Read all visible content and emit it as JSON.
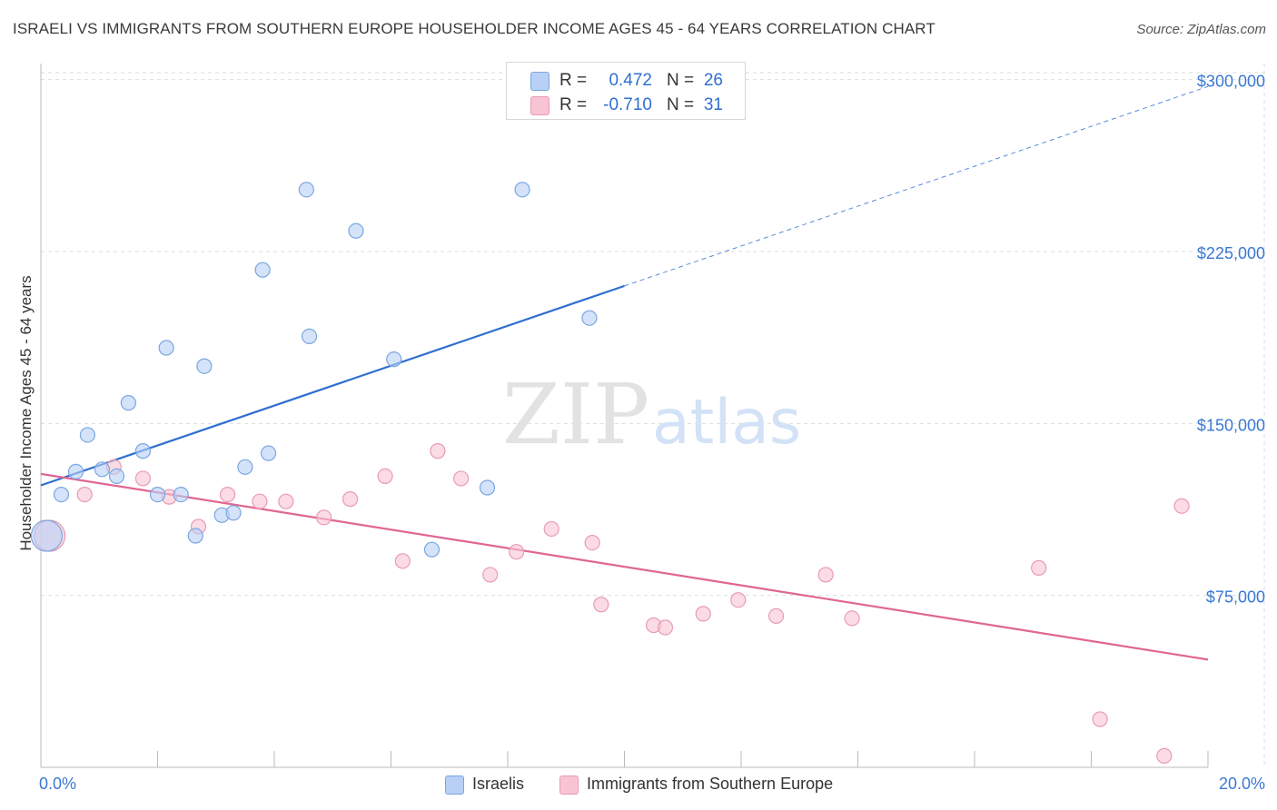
{
  "title": "ISRAELI VS IMMIGRANTS FROM SOUTHERN EUROPE HOUSEHOLDER INCOME AGES 45 - 64 YEARS CORRELATION CHART",
  "source": "Source: ZipAtlas.com",
  "watermark": {
    "zip": "ZIP",
    "atlas": "atlas"
  },
  "legend": {
    "series1": {
      "r_label": "R =",
      "r_value": "0.472",
      "n_label": "N =",
      "n_value": "26"
    },
    "series2": {
      "r_label": "R =",
      "r_value": "-0.710",
      "n_label": "N =",
      "n_value": "31"
    }
  },
  "colors": {
    "israeli_fill": "#b8d0f5",
    "israeli_stroke": "#7aa6e0",
    "israeli_line": "#2f6fd0",
    "seurope_fill": "#f8c4d4",
    "seurope_stroke": "#e99ab4",
    "seurope_line": "#e06692",
    "axis_label": "#3a78d4",
    "grid": "#dddddd"
  },
  "chart_data": {
    "type": "scatter",
    "title": "ISRAELI VS IMMIGRANTS FROM SOUTHERN EUROPE HOUSEHOLDER INCOME AGES 45 - 64 YEARS CORRELATION CHART",
    "xlabel": "",
    "ylabel": "Householder Income Ages 45 - 64 years",
    "xlim": [
      0,
      20
    ],
    "ylim": [
      0,
      307000
    ],
    "x_tick_labels": [
      "0.0%",
      "20.0%"
    ],
    "y_ticks": [
      75000,
      150000,
      225000,
      300000
    ],
    "y_tick_labels": [
      "$75,000",
      "$150,000",
      "$225,000",
      "$300,000"
    ],
    "series": [
      {
        "name": "Israelis",
        "points": [
          {
            "x": 0.1,
            "y": 101000,
            "big": true
          },
          {
            "x": 0.35,
            "y": 119000
          },
          {
            "x": 0.6,
            "y": 129000
          },
          {
            "x": 0.8,
            "y": 145000
          },
          {
            "x": 1.05,
            "y": 130000
          },
          {
            "x": 1.3,
            "y": 127000
          },
          {
            "x": 1.5,
            "y": 159000
          },
          {
            "x": 1.75,
            "y": 138000
          },
          {
            "x": 2.0,
            "y": 119000
          },
          {
            "x": 2.15,
            "y": 183000
          },
          {
            "x": 2.4,
            "y": 119000
          },
          {
            "x": 2.65,
            "y": 101000
          },
          {
            "x": 2.8,
            "y": 175000
          },
          {
            "x": 3.1,
            "y": 110000
          },
          {
            "x": 3.3,
            "y": 111000
          },
          {
            "x": 3.5,
            "y": 131000
          },
          {
            "x": 3.8,
            "y": 217000
          },
          {
            "x": 3.9,
            "y": 137000
          },
          {
            "x": 4.55,
            "y": 252000
          },
          {
            "x": 4.6,
            "y": 188000
          },
          {
            "x": 5.4,
            "y": 234000
          },
          {
            "x": 6.05,
            "y": 178000
          },
          {
            "x": 6.7,
            "y": 95000
          },
          {
            "x": 7.65,
            "y": 122000
          },
          {
            "x": 8.25,
            "y": 252000
          },
          {
            "x": 9.4,
            "y": 196000
          }
        ],
        "trend": {
          "x0": 0,
          "y0": 123000,
          "x1": 10,
          "y1": 210000,
          "dashed_to_x": 20,
          "dashed_to_y": 297000
        }
      },
      {
        "name": "Immigrants from Southern Europe",
        "points": [
          {
            "x": 0.15,
            "y": 101000,
            "big": true
          },
          {
            "x": 0.75,
            "y": 119000
          },
          {
            "x": 1.25,
            "y": 131000
          },
          {
            "x": 1.75,
            "y": 126000
          },
          {
            "x": 2.2,
            "y": 118000
          },
          {
            "x": 2.7,
            "y": 105000
          },
          {
            "x": 3.2,
            "y": 119000
          },
          {
            "x": 3.75,
            "y": 116000
          },
          {
            "x": 4.2,
            "y": 116000
          },
          {
            "x": 4.85,
            "y": 109000
          },
          {
            "x": 5.3,
            "y": 117000
          },
          {
            "x": 5.9,
            "y": 127000
          },
          {
            "x": 6.2,
            "y": 90000
          },
          {
            "x": 6.8,
            "y": 138000
          },
          {
            "x": 7.2,
            "y": 126000
          },
          {
            "x": 7.7,
            "y": 84000
          },
          {
            "x": 8.15,
            "y": 94000
          },
          {
            "x": 8.75,
            "y": 104000
          },
          {
            "x": 9.45,
            "y": 98000
          },
          {
            "x": 9.6,
            "y": 71000
          },
          {
            "x": 10.5,
            "y": 62000
          },
          {
            "x": 10.7,
            "y": 61000
          },
          {
            "x": 11.35,
            "y": 67000
          },
          {
            "x": 11.95,
            "y": 73000
          },
          {
            "x": 12.6,
            "y": 66000
          },
          {
            "x": 13.45,
            "y": 84000
          },
          {
            "x": 13.9,
            "y": 65000
          },
          {
            "x": 17.1,
            "y": 87000
          },
          {
            "x": 18.15,
            "y": 21000
          },
          {
            "x": 19.25,
            "y": 5000
          },
          {
            "x": 19.55,
            "y": 114000
          }
        ],
        "trend": {
          "x0": 0,
          "y0": 128000,
          "x1": 20,
          "y1": 47000
        }
      }
    ],
    "legend_entries": [
      "Israelis",
      "Immigrants from Southern Europe"
    ]
  }
}
